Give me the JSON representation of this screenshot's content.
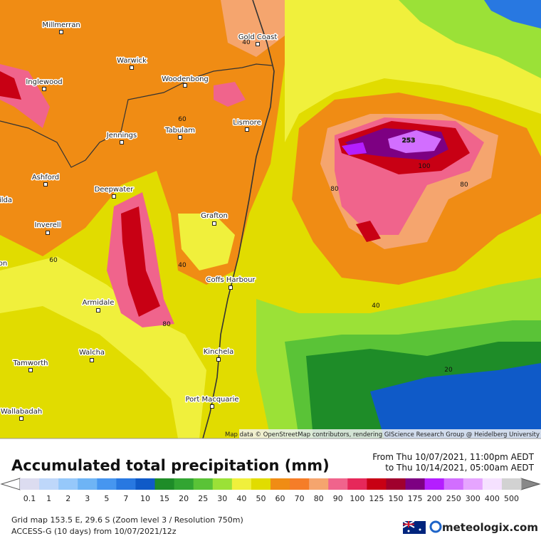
{
  "map": {
    "places": [
      "Millmerran",
      "Gold Coast",
      "Warwick",
      "Inglewood",
      "Woodenbong",
      "Lismore",
      "Tabulam",
      "Jennings",
      "Ashford",
      "Deepwater",
      "Grafton",
      "Inverell",
      "Coffs Harbour",
      "Armidale",
      "Walcha",
      "Kinchela",
      "Tamworth",
      "Port Macquarie",
      "Wallabadah",
      "ilda",
      "on"
    ],
    "contour_labels": [
      "40",
      "60",
      "253",
      "100",
      "80",
      "80",
      "40",
      "40",
      "60",
      "80",
      "20"
    ],
    "attribution": "Map data © OpenStreetMap contributors, rendering GIScience Research Group @ Heidelberg University"
  },
  "header": {
    "title": "Accumulated total precipitation (mm)",
    "period_from": "From Thu 10/07/2021, 11:00pm AEDT",
    "period_to": "to Thu 10/14/2021, 05:00am AEDT"
  },
  "legend": {
    "labels": [
      "0.1",
      "1",
      "2",
      "3",
      "5",
      "7",
      "10",
      "15",
      "20",
      "25",
      "30",
      "40",
      "50",
      "60",
      "70",
      "80",
      "90",
      "100",
      "125",
      "150",
      "175",
      "200",
      "250",
      "300",
      "400",
      "500"
    ],
    "colors": [
      "#dcdcf0",
      "#bed7fa",
      "#96c8fa",
      "#6eb4f5",
      "#4696f0",
      "#2878e1",
      "#0f5ac8",
      "#1e8c28",
      "#32a532",
      "#5ac337",
      "#9be137",
      "#f0f03c",
      "#e1dc00",
      "#f08c14",
      "#f57d28",
      "#f5a56e",
      "#f0648c",
      "#e6285a",
      "#c80014",
      "#a0002d",
      "#7d0082",
      "#b41eff",
      "#d26eff",
      "#e6a5ff",
      "#f5e1ff",
      "#d2d2d2"
    ]
  },
  "footer": {
    "grid": "Grid map 153.5 E, 29.6 S (Zoom level 3 / Resolution 750m)",
    "model": "ACCESS-G (10 days)  from  10/07/2021/12z",
    "brand": "meteologix.com"
  }
}
